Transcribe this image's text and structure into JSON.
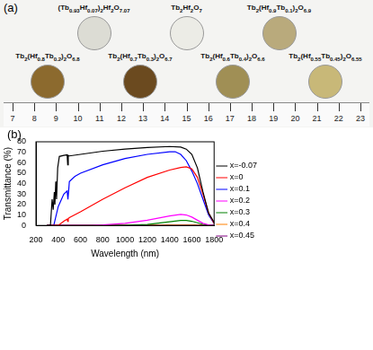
{
  "panel_a": {
    "label": "(a)",
    "rows": [
      [
        "(Tb0.93Hf0.07)2Hf2O7.07",
        "Tb2Hf2O7",
        "Tb2(Hf0.9Tb0.1)2O6.9"
      ],
      [
        "Tb2(Hf0.8Tb0.2)2O6.8",
        "Tb2(Hf0.7Tb0.3)2O6.7",
        "Tb2(Hf0.6Tb0.4)2O6.6",
        "Tb2(Hf0.55Tb0.45)2O6.55"
      ]
    ],
    "ruler_ticks": [
      7,
      8,
      9,
      10,
      11,
      12,
      13,
      14,
      15,
      16,
      17,
      18,
      19,
      20,
      21,
      22,
      23
    ]
  },
  "chart_data": {
    "type": "line",
    "panel_label": "(b)",
    "x_label": "Wavelength (nm)",
    "y_label": "Transmittance (%)",
    "xlim": [
      200,
      1800
    ],
    "xticks": [
      200,
      400,
      600,
      800,
      1000,
      1200,
      1400,
      1600,
      1800
    ],
    "ylim": [
      0,
      80
    ],
    "yticks": [
      0,
      10,
      20,
      30,
      40,
      50,
      60,
      70,
      80
    ],
    "grid": false,
    "legend": "right",
    "series": [
      {
        "name": "x=-0.07",
        "color": "#000000",
        "x": [
          300,
          330,
          345,
          355,
          365,
          370,
          378,
          385,
          395,
          410,
          450,
          480,
          485,
          490,
          500,
          600,
          800,
          1000,
          1200,
          1400,
          1500,
          1550,
          1600,
          1650,
          1700,
          1750,
          1800
        ],
        "values": [
          0,
          0,
          25,
          15,
          32,
          20,
          42,
          25,
          55,
          66,
          67,
          67.5,
          58,
          67,
          66.5,
          68,
          71,
          73,
          74.5,
          75.5,
          75,
          73,
          68,
          55,
          32,
          12,
          3
        ]
      },
      {
        "name": "x=0",
        "color": "#ff0000",
        "x": [
          300,
          400,
          450,
          480,
          485,
          490,
          500,
          600,
          800,
          1000,
          1200,
          1400,
          1500,
          1550,
          1600,
          1650,
          1700,
          1750,
          1800
        ],
        "values": [
          0,
          0,
          4,
          6,
          4,
          6.5,
          7.5,
          13,
          25,
          36,
          46,
          53,
          55.5,
          56,
          54,
          46,
          30,
          12,
          2
        ]
      },
      {
        "name": "x=0.1",
        "color": "#0000ff",
        "x": [
          300,
          360,
          400,
          450,
          480,
          487,
          495,
          500,
          550,
          600,
          800,
          1000,
          1200,
          1400,
          1450,
          1500,
          1550,
          1600,
          1650,
          1700,
          1750,
          1800
        ],
        "values": [
          0,
          0,
          18,
          30,
          33,
          25,
          35,
          42,
          47,
          50,
          58,
          64,
          68,
          70.5,
          70.5,
          68,
          62,
          52,
          40,
          25,
          10,
          2
        ]
      },
      {
        "name": "x=0.2",
        "color": "#ff00ff",
        "x": [
          300,
          700,
          800,
          1000,
          1200,
          1400,
          1500,
          1550,
          1600,
          1650,
          1700,
          1750,
          1800
        ],
        "values": [
          0,
          0,
          0.5,
          2,
          5,
          9,
          10.5,
          10,
          8,
          5,
          2,
          0.5,
          0
        ]
      },
      {
        "name": "x=0.3",
        "color": "#008000",
        "x": [
          300,
          1000,
          1200,
          1400,
          1500,
          1550,
          1600,
          1650,
          1700,
          1750,
          1800
        ],
        "values": [
          0,
          0,
          1,
          3.5,
          4.8,
          4.8,
          4,
          2.5,
          1,
          0.3,
          0
        ]
      },
      {
        "name": "x=0.4",
        "color": "#ff8000",
        "x": [
          300,
          1200,
          1400,
          1500,
          1600,
          1700,
          1800
        ],
        "values": [
          0,
          0,
          0.2,
          0.3,
          0.2,
          0,
          0
        ]
      },
      {
        "name": "x=0.45",
        "color": "#800080",
        "x": [
          300,
          1200,
          1400,
          1550,
          1650,
          1750,
          1800
        ],
        "values": [
          0,
          0,
          0.3,
          0.5,
          0.3,
          0,
          0
        ]
      }
    ]
  }
}
